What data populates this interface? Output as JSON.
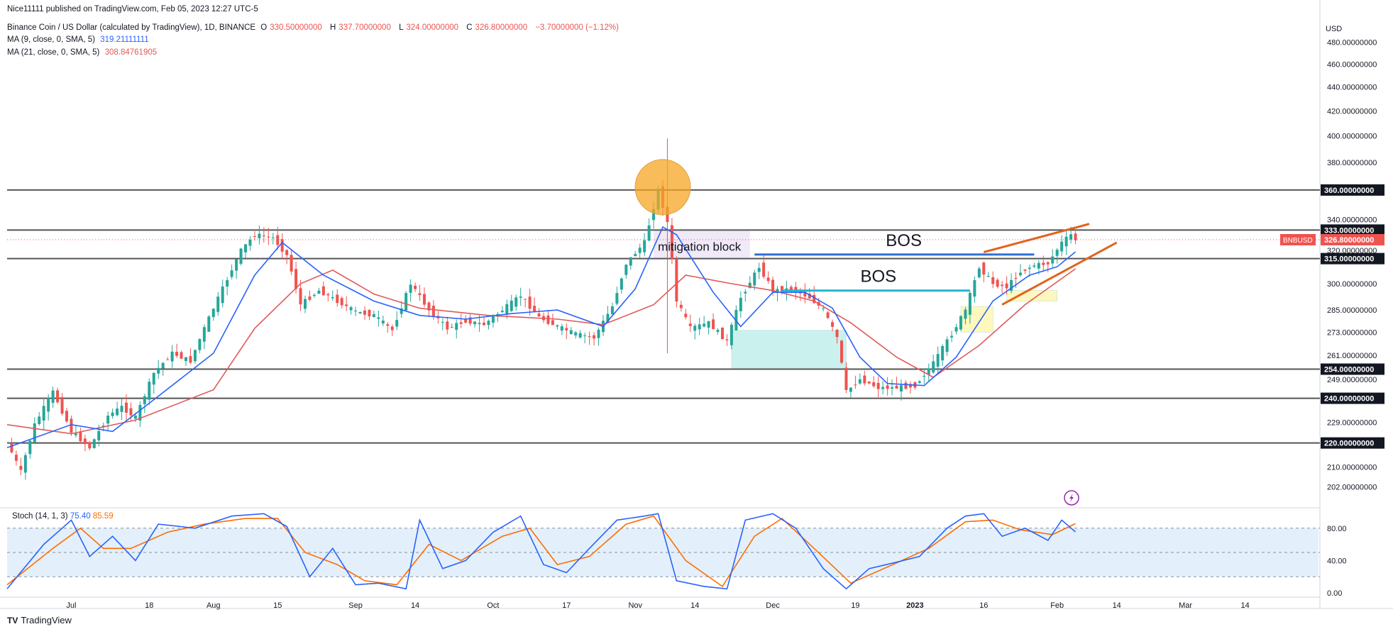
{
  "header": {
    "published": "Nice11111 published on TradingView.com, Feb 05, 2023 12:27 UTC-5",
    "symbol": "Binance Coin / US Dollar (calculated by TradingView), 1D, BINANCE",
    "ohlc": {
      "o_label": "O",
      "o": "330.50000000",
      "h_label": "H",
      "h": "337.70000000",
      "l_label": "L",
      "l": "324.00000000",
      "c_label": "C",
      "c": "326.80000000",
      "change": "−3.70000000 (−1.12%)"
    },
    "ma9": {
      "label": "MA (9, close, 0, SMA, 5)",
      "value": "319.21111111"
    },
    "ma21": {
      "label": "MA (21, close, 0, SMA, 5)",
      "value": "308.84761905"
    }
  },
  "stoch": {
    "label": "Stoch (14, 1, 3)",
    "k": "75.40",
    "d": "85.59"
  },
  "brand": {
    "name": "TradingView",
    "logo": "TV"
  },
  "colors": {
    "up": "#26a69a",
    "down": "#ef5350",
    "ma9": "#2962ff",
    "ma21": "#e05a5a",
    "stoch_k": "#2962ff",
    "stoch_d": "#ff6d00",
    "level_line": "#555555",
    "bos1": "#2f6fd6",
    "bos2": "#22b5cf",
    "wedge": "#e0631c",
    "circle": "#f5a623"
  },
  "chart_data": {
    "type": "candlestick",
    "symbol": "BNBUSD",
    "unit": "USD",
    "y_scale": "log",
    "ylim": [
      195,
      500
    ],
    "y_ticks": [
      {
        "value": 202,
        "label": "202.00000000"
      },
      {
        "value": 210,
        "label": "210.00000000"
      },
      {
        "value": 229,
        "label": "229.00000000"
      },
      {
        "value": 249,
        "label": "249.00000000"
      },
      {
        "value": 261,
        "label": "261.00000000"
      },
      {
        "value": 273,
        "label": "273.00000000"
      },
      {
        "value": 285,
        "label": "285.00000000"
      },
      {
        "value": 300,
        "label": "300.00000000"
      },
      {
        "value": 320,
        "label": "320.00000000"
      },
      {
        "value": 340,
        "label": "340.00000000"
      },
      {
        "value": 380,
        "label": "380.00000000"
      },
      {
        "value": 400,
        "label": "400.00000000"
      },
      {
        "value": 420,
        "label": "420.00000000"
      },
      {
        "value": 440,
        "label": "440.00000000"
      },
      {
        "value": 460,
        "label": "460.00000000"
      },
      {
        "value": 480,
        "label": "480.00000000"
      }
    ],
    "horizontal_levels": [
      {
        "value": 360,
        "label": "360.00000000"
      },
      {
        "value": 333,
        "label": "333.00000000"
      },
      {
        "value": 315,
        "label": "315.00000000"
      },
      {
        "value": 254,
        "label": "254.00000000"
      },
      {
        "value": 240,
        "label": "240.00000000"
      },
      {
        "value": 220,
        "label": "220.00000000"
      }
    ],
    "current_price": {
      "value": 326.8,
      "label": "326.80000000",
      "symbol_label": "BNBUSD"
    },
    "x_start": "2022-06-17",
    "x_end": "2023-03-30",
    "x_ticks": [
      {
        "date": "2022-07-01",
        "label": "Jul"
      },
      {
        "date": "2022-07-18",
        "label": "18"
      },
      {
        "date": "2022-08-01",
        "label": "Aug"
      },
      {
        "date": "2022-08-15",
        "label": "15"
      },
      {
        "date": "2022-09-01",
        "label": "Sep"
      },
      {
        "date": "2022-09-14",
        "label": "14"
      },
      {
        "date": "2022-10-01",
        "label": "Oct"
      },
      {
        "date": "2022-10-17",
        "label": "17"
      },
      {
        "date": "2022-11-01",
        "label": "Nov"
      },
      {
        "date": "2022-11-14",
        "label": "14"
      },
      {
        "date": "2022-12-01",
        "label": "Dec"
      },
      {
        "date": "2022-12-19",
        "label": "19"
      },
      {
        "date": "2023-01-01",
        "label": "2023"
      },
      {
        "date": "2023-01-16",
        "label": "16"
      },
      {
        "date": "2023-02-01",
        "label": "Feb"
      },
      {
        "date": "2023-02-14",
        "label": "14"
      },
      {
        "date": "2023-03-01",
        "label": "Mar"
      },
      {
        "date": "2023-03-14",
        "label": "14"
      }
    ],
    "price_path": [
      [
        "2022-06-17",
        220
      ],
      [
        "2022-06-20",
        208
      ],
      [
        "2022-06-23",
        228
      ],
      [
        "2022-06-27",
        243
      ],
      [
        "2022-07-01",
        225
      ],
      [
        "2022-07-05",
        218
      ],
      [
        "2022-07-09",
        232
      ],
      [
        "2022-07-12",
        236
      ],
      [
        "2022-07-15",
        231
      ],
      [
        "2022-07-19",
        252
      ],
      [
        "2022-07-23",
        262
      ],
      [
        "2022-07-27",
        258
      ],
      [
        "2022-07-30",
        275
      ],
      [
        "2022-08-03",
        297
      ],
      [
        "2022-08-07",
        320
      ],
      [
        "2022-08-10",
        330
      ],
      [
        "2022-08-14",
        328
      ],
      [
        "2022-08-17",
        317
      ],
      [
        "2022-08-20",
        288
      ],
      [
        "2022-08-24",
        296
      ],
      [
        "2022-08-28",
        290
      ],
      [
        "2022-09-01",
        284
      ],
      [
        "2022-09-05",
        282
      ],
      [
        "2022-09-09",
        274
      ],
      [
        "2022-09-13",
        300
      ],
      [
        "2022-09-17",
        285
      ],
      [
        "2022-09-21",
        275
      ],
      [
        "2022-09-25",
        279
      ],
      [
        "2022-09-29",
        277
      ],
      [
        "2022-10-03",
        285
      ],
      [
        "2022-10-07",
        293
      ],
      [
        "2022-10-11",
        281
      ],
      [
        "2022-10-15",
        276
      ],
      [
        "2022-10-19",
        272
      ],
      [
        "2022-10-23",
        270
      ],
      [
        "2022-10-27",
        287
      ],
      [
        "2022-10-30",
        312
      ],
      [
        "2022-11-03",
        325
      ],
      [
        "2022-11-06",
        360
      ],
      [
        "2022-11-08",
        338
      ],
      [
        "2022-11-10",
        290
      ],
      [
        "2022-11-13",
        275
      ],
      [
        "2022-11-17",
        278
      ],
      [
        "2022-11-21",
        268
      ],
      [
        "2022-11-24",
        292
      ],
      [
        "2022-11-28",
        310
      ],
      [
        "2022-12-01",
        296
      ],
      [
        "2022-12-05",
        297
      ],
      [
        "2022-12-09",
        292
      ],
      [
        "2022-12-12",
        285
      ],
      [
        "2022-12-15",
        270
      ],
      [
        "2022-12-17",
        243
      ],
      [
        "2022-12-20",
        249
      ],
      [
        "2022-12-24",
        245
      ],
      [
        "2022-12-28",
        245
      ],
      [
        "2023-01-01",
        246
      ],
      [
        "2023-01-05",
        257
      ],
      [
        "2023-01-09",
        272
      ],
      [
        "2023-01-12",
        285
      ],
      [
        "2023-01-15",
        310
      ],
      [
        "2023-01-18",
        300
      ],
      [
        "2023-01-21",
        298
      ],
      [
        "2023-01-24",
        307
      ],
      [
        "2023-01-27",
        311
      ],
      [
        "2023-01-30",
        312
      ],
      [
        "2023-02-02",
        325
      ],
      [
        "2023-02-04",
        330
      ],
      [
        "2023-02-05",
        326.8
      ]
    ],
    "ma9_path": [
      [
        "2022-06-17",
        218
      ],
      [
        "2022-07-01",
        228
      ],
      [
        "2022-07-10",
        225
      ],
      [
        "2022-07-20",
        241
      ],
      [
        "2022-08-01",
        262
      ],
      [
        "2022-08-10",
        305
      ],
      [
        "2022-08-16",
        325
      ],
      [
        "2022-08-25",
        305
      ],
      [
        "2022-09-05",
        290
      ],
      [
        "2022-09-15",
        282
      ],
      [
        "2022-09-25",
        280
      ],
      [
        "2022-10-05",
        283
      ],
      [
        "2022-10-15",
        285
      ],
      [
        "2022-10-25",
        276
      ],
      [
        "2022-11-01",
        297
      ],
      [
        "2022-11-07",
        335
      ],
      [
        "2022-11-10",
        330
      ],
      [
        "2022-11-18",
        295
      ],
      [
        "2022-11-24",
        276
      ],
      [
        "2022-12-01",
        295
      ],
      [
        "2022-12-08",
        295
      ],
      [
        "2022-12-14",
        286
      ],
      [
        "2022-12-20",
        260
      ],
      [
        "2022-12-26",
        247
      ],
      [
        "2023-01-03",
        246
      ],
      [
        "2023-01-10",
        260
      ],
      [
        "2023-01-18",
        290
      ],
      [
        "2023-01-26",
        305
      ],
      [
        "2023-02-01",
        310
      ],
      [
        "2023-02-05",
        319.2
      ]
    ],
    "ma21_path": [
      [
        "2022-06-17",
        228
      ],
      [
        "2022-07-01",
        224
      ],
      [
        "2022-07-15",
        230
      ],
      [
        "2022-08-01",
        244
      ],
      [
        "2022-08-10",
        275
      ],
      [
        "2022-08-20",
        300
      ],
      [
        "2022-08-27",
        308
      ],
      [
        "2022-09-05",
        294
      ],
      [
        "2022-09-15",
        286
      ],
      [
        "2022-09-30",
        282
      ],
      [
        "2022-10-15",
        280
      ],
      [
        "2022-10-25",
        277
      ],
      [
        "2022-11-05",
        288
      ],
      [
        "2022-11-12",
        305
      ],
      [
        "2022-11-22",
        300
      ],
      [
        "2022-12-01",
        296
      ],
      [
        "2022-12-10",
        290
      ],
      [
        "2022-12-18",
        278
      ],
      [
        "2022-12-28",
        260
      ],
      [
        "2023-01-05",
        250
      ],
      [
        "2023-01-15",
        266
      ],
      [
        "2023-01-25",
        288
      ],
      [
        "2023-02-05",
        308.8
      ]
    ],
    "annotations": {
      "bos": [
        {
          "text": "BOS",
          "value": 317.5,
          "from": "2022-11-27",
          "to": "2023-01-27"
        },
        {
          "text": "BOS",
          "value": 296,
          "from": "2022-12-03",
          "to": "2023-01-13"
        }
      ],
      "mitigation_block": {
        "text": "mitigation block",
        "from": "2022-11-05",
        "to": "2022-11-26",
        "top": 333,
        "bottom": 315
      },
      "zones": [
        {
          "from": "2022-11-22",
          "to": "2022-12-17",
          "top": 274,
          "bottom": 254,
          "color": "#b9ece8"
        },
        {
          "from": "2023-01-11",
          "to": "2023-01-18",
          "top": 287,
          "bottom": 273,
          "color": "#fff6a8"
        },
        {
          "from": "2023-01-21",
          "to": "2023-02-01",
          "top": 296,
          "bottom": 290,
          "color": "#fff6a8"
        }
      ],
      "wedge_lines": [
        {
          "from": [
            "2023-01-16",
            319
          ],
          "to": [
            "2023-02-08",
            337
          ]
        },
        {
          "from": [
            "2023-01-20",
            288
          ],
          "to": [
            "2023-02-14",
            325
          ]
        }
      ],
      "circle": {
        "date": "2022-11-07",
        "value": 362
      }
    }
  },
  "stoch_data": {
    "levels": [
      {
        "value": 80,
        "label": "80.00"
      },
      {
        "value": 40,
        "label": "40.00"
      },
      {
        "value": 0,
        "label": "0.00"
      }
    ],
    "k_path": [
      [
        "2022-06-17",
        5
      ],
      [
        "2022-06-25",
        60
      ],
      [
        "2022-07-01",
        90
      ],
      [
        "2022-07-05",
        45
      ],
      [
        "2022-07-10",
        70
      ],
      [
        "2022-07-15",
        40
      ],
      [
        "2022-07-20",
        85
      ],
      [
        "2022-07-28",
        80
      ],
      [
        "2022-08-05",
        95
      ],
      [
        "2022-08-12",
        98
      ],
      [
        "2022-08-17",
        82
      ],
      [
        "2022-08-22",
        20
      ],
      [
        "2022-08-27",
        55
      ],
      [
        "2022-09-01",
        10
      ],
      [
        "2022-09-06",
        12
      ],
      [
        "2022-09-12",
        5
      ],
      [
        "2022-09-15",
        90
      ],
      [
        "2022-09-20",
        30
      ],
      [
        "2022-09-25",
        40
      ],
      [
        "2022-10-01",
        75
      ],
      [
        "2022-10-07",
        95
      ],
      [
        "2022-10-12",
        35
      ],
      [
        "2022-10-17",
        25
      ],
      [
        "2022-10-22",
        55
      ],
      [
        "2022-10-28",
        90
      ],
      [
        "2022-11-03",
        95
      ],
      [
        "2022-11-06",
        98
      ],
      [
        "2022-11-10",
        15
      ],
      [
        "2022-11-16",
        8
      ],
      [
        "2022-11-21",
        5
      ],
      [
        "2022-11-25",
        90
      ],
      [
        "2022-12-01",
        98
      ],
      [
        "2022-12-06",
        80
      ],
      [
        "2022-12-12",
        30
      ],
      [
        "2022-12-17",
        5
      ],
      [
        "2022-12-22",
        30
      ],
      [
        "2022-12-28",
        38
      ],
      [
        "2023-01-02",
        45
      ],
      [
        "2023-01-08",
        80
      ],
      [
        "2023-01-12",
        95
      ],
      [
        "2023-01-16",
        98
      ],
      [
        "2023-01-20",
        70
      ],
      [
        "2023-01-25",
        80
      ],
      [
        "2023-01-30",
        65
      ],
      [
        "2023-02-02",
        90
      ],
      [
        "2023-02-05",
        75.4
      ]
    ],
    "d_path": [
      [
        "2022-06-17",
        10
      ],
      [
        "2022-06-27",
        55
      ],
      [
        "2022-07-03",
        80
      ],
      [
        "2022-07-08",
        55
      ],
      [
        "2022-07-14",
        55
      ],
      [
        "2022-07-22",
        75
      ],
      [
        "2022-07-30",
        85
      ],
      [
        "2022-08-08",
        92
      ],
      [
        "2022-08-15",
        92
      ],
      [
        "2022-08-21",
        50
      ],
      [
        "2022-08-28",
        35
      ],
      [
        "2022-09-03",
        15
      ],
      [
        "2022-09-10",
        10
      ],
      [
        "2022-09-17",
        60
      ],
      [
        "2022-09-24",
        40
      ],
      [
        "2022-10-03",
        70
      ],
      [
        "2022-10-09",
        80
      ],
      [
        "2022-10-15",
        35
      ],
      [
        "2022-10-22",
        45
      ],
      [
        "2022-10-30",
        85
      ],
      [
        "2022-11-05",
        95
      ],
      [
        "2022-11-12",
        40
      ],
      [
        "2022-11-20",
        8
      ],
      [
        "2022-11-27",
        70
      ],
      [
        "2022-12-03",
        92
      ],
      [
        "2022-12-10",
        55
      ],
      [
        "2022-12-18",
        12
      ],
      [
        "2022-12-26",
        32
      ],
      [
        "2023-01-04",
        55
      ],
      [
        "2023-01-12",
        88
      ],
      [
        "2023-01-18",
        90
      ],
      [
        "2023-01-24",
        78
      ],
      [
        "2023-01-31",
        72
      ],
      [
        "2023-02-05",
        85.59
      ]
    ]
  }
}
